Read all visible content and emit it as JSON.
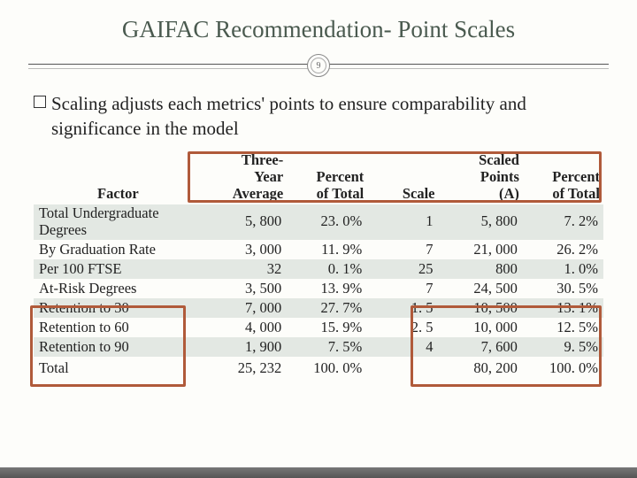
{
  "slide": {
    "title": "GAIFAC Recommendation- Point Scales",
    "page_number": "9",
    "bullet": "Scaling adjusts each metrics' points to ensure comparability and significance in the model"
  },
  "table": {
    "headers": {
      "factor": "Factor",
      "avg": "Three-Year Average",
      "pct1": "Percent of Total",
      "scale": "Scale",
      "scaled": "Scaled Points (A)",
      "pct2": "Percent of Total"
    },
    "rows": [
      {
        "factor": "Total Undergraduate Degrees",
        "avg": "5, 800",
        "pct1": "23. 0%",
        "scale": "1",
        "scaled": "5, 800",
        "pct2": "7. 2%",
        "tall": true
      },
      {
        "factor": "By Graduation Rate",
        "avg": "3, 000",
        "pct1": "11. 9%",
        "scale": "7",
        "scaled": "21, 000",
        "pct2": "26. 2%"
      },
      {
        "factor": "Per 100 FTSE",
        "avg": "32",
        "pct1": "0. 1%",
        "scale": "25",
        "scaled": "800",
        "pct2": "1. 0%"
      },
      {
        "factor": "At-Risk Degrees",
        "avg": "3, 500",
        "pct1": "13. 9%",
        "scale": "7",
        "scaled": "24, 500",
        "pct2": "30. 5%"
      },
      {
        "factor": "Retention to 30",
        "avg": "7, 000",
        "pct1": "27. 7%",
        "scale": "1. 5",
        "scaled": "10, 500",
        "pct2": "13. 1%"
      },
      {
        "factor": "Retention to 60",
        "avg": "4, 000",
        "pct1": "15. 9%",
        "scale": "2. 5",
        "scaled": "10, 000",
        "pct2": "12. 5%"
      },
      {
        "factor": "Retention to 90",
        "avg": "1, 900",
        "pct1": "7. 5%",
        "scale": "4",
        "scaled": "7, 600",
        "pct2": "9. 5%"
      }
    ],
    "total": {
      "factor": "Total",
      "avg": "25, 232",
      "pct1": "100. 0%",
      "scale": "",
      "scaled": "80, 200",
      "pct2": "100. 0%"
    }
  },
  "styling": {
    "colors": {
      "background": "#fdfdfa",
      "title_text": "#4a5a4f",
      "body_text": "#222222",
      "row_shade": "#e3e8e3",
      "highlight_border": "#b05a3a",
      "rule_dark": "#555555",
      "rule_light": "#bbbbbb",
      "footer_bar": "#666666"
    },
    "fonts": {
      "title_size_pt": 20,
      "body_size_pt": 16,
      "table_size_pt": 12.5,
      "family": "Georgia / serif"
    },
    "highlights": [
      {
        "desc": "header row outline",
        "top_pct": 0,
        "covers": "Three-Year Average through Percent of Total headers"
      },
      {
        "desc": "At-Risk Degrees through Retention to 90 factor labels"
      },
      {
        "desc": "At-Risk Degrees through Retention to 90 scaled+percent columns"
      }
    ]
  }
}
